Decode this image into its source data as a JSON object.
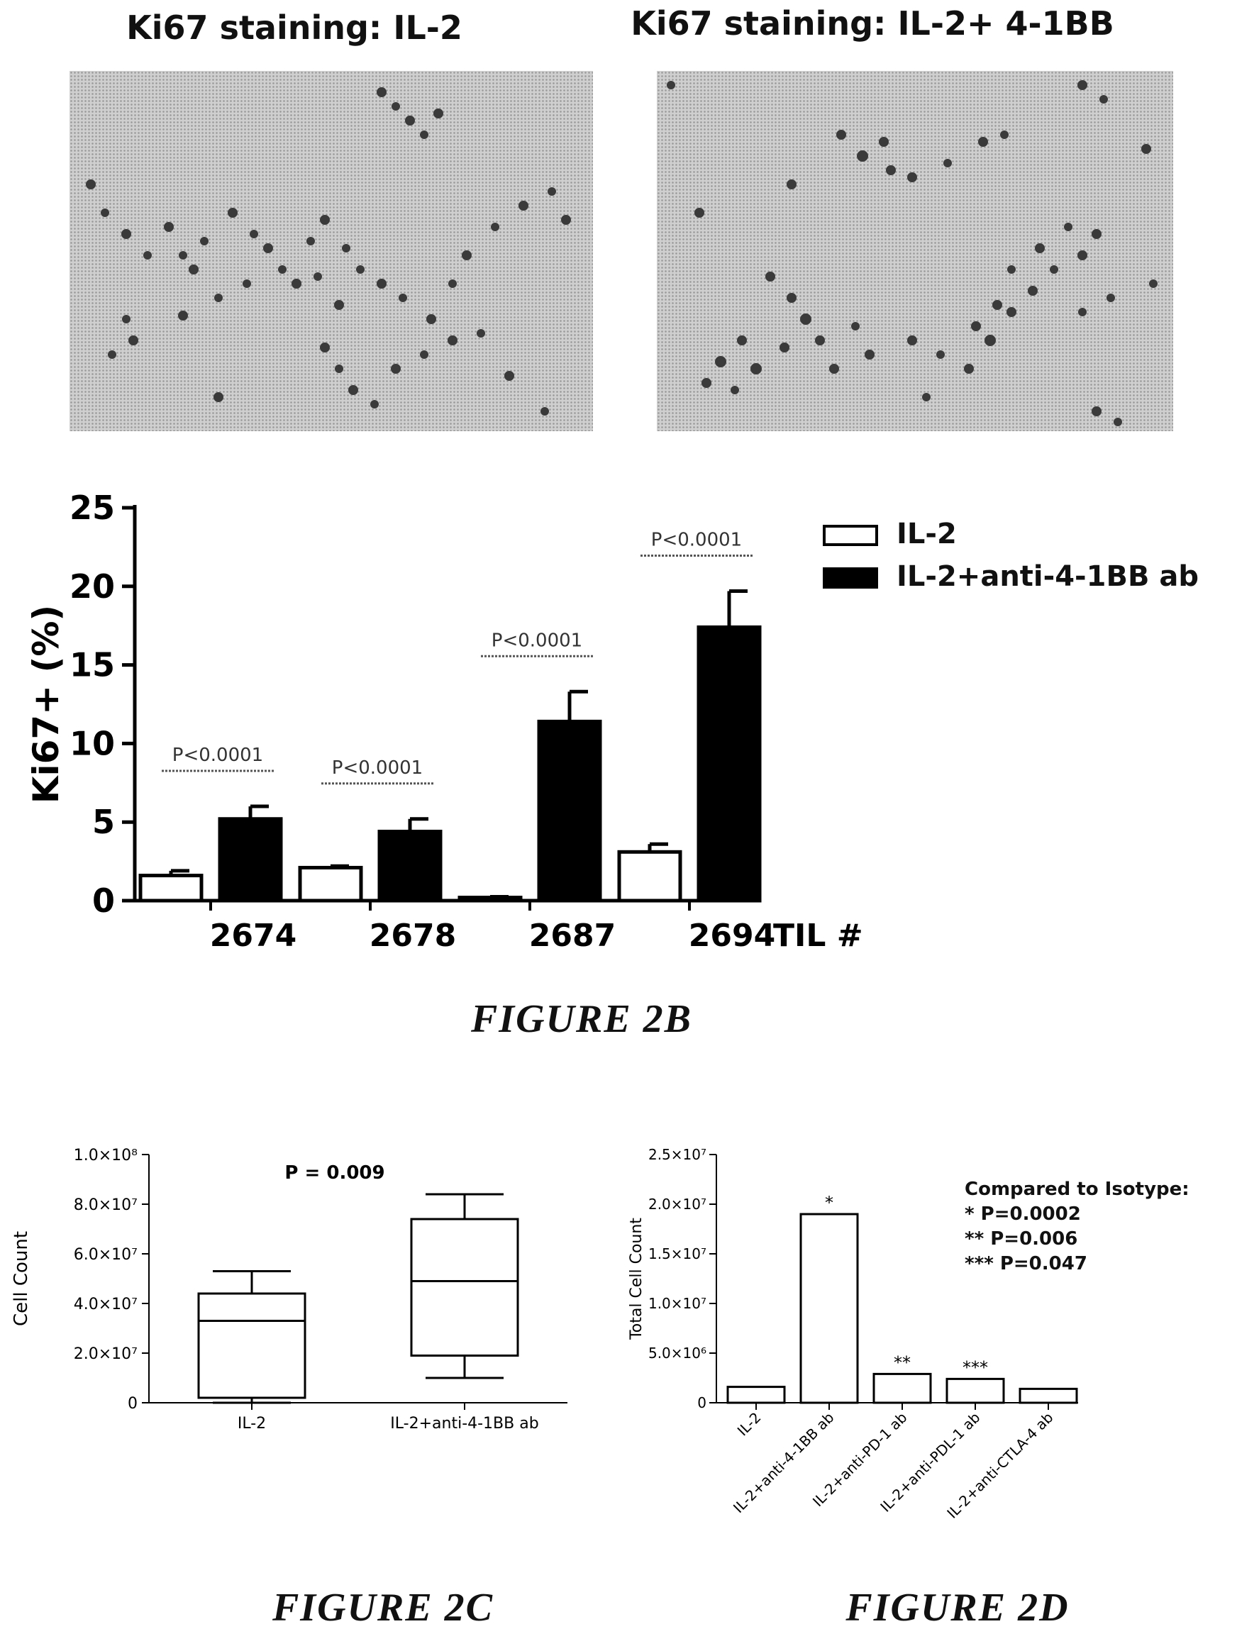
{
  "micrographs": [
    {
      "title": "Ki67 staining: IL-2"
    },
    {
      "title": "Ki67 staining: IL-2+ 4-1BB"
    }
  ],
  "captions": {
    "fig2b": "FIGURE 2B",
    "fig2c": "FIGURE 2C",
    "fig2d": "FIGURE 2D"
  },
  "colors": {
    "open_bar": "#ffffff",
    "filled_bar": "#000000",
    "axis": "#000000"
  },
  "chart_data": [
    {
      "id": "fig2b",
      "type": "bar",
      "title": "",
      "xlabel": "TIL #",
      "ylabel": "Ki67+ (%)",
      "ylim": [
        0,
        25
      ],
      "yticks": [
        0,
        5,
        10,
        15,
        20,
        25
      ],
      "categories": [
        "2674",
        "2678",
        "2687",
        "2694"
      ],
      "series": [
        {
          "name": "IL-2",
          "fill": "open",
          "values": [
            1.6,
            2.1,
            0.2,
            3.1
          ],
          "errors": [
            0.3,
            0.1,
            0.05,
            0.5
          ]
        },
        {
          "name": "IL-2+anti-4-1BB ab",
          "fill": "filled",
          "values": [
            5.2,
            4.4,
            11.4,
            17.4
          ],
          "errors": [
            0.8,
            0.8,
            1.9,
            2.3
          ]
        }
      ],
      "annotations": [
        "P<0.0001",
        "P<0.0001",
        "P<0.0001",
        "P<0.0001"
      ],
      "legend": "top-right",
      "grid": false
    },
    {
      "id": "fig2c",
      "type": "box",
      "title": "P = 0.009",
      "xlabel": "",
      "ylabel": "Cell Count",
      "ylim": [
        0,
        100000000
      ],
      "yticks": [
        0,
        20000000,
        40000000,
        60000000,
        80000000,
        100000000
      ],
      "ytick_labels": [
        "0",
        "2.0×10⁷",
        "4.0×10⁷",
        "6.0×10⁷",
        "8.0×10⁷",
        "1.0×10⁸"
      ],
      "categories": [
        "IL-2",
        "IL-2+anti-4-1BB ab"
      ],
      "boxes": [
        {
          "min": 0,
          "q1": 2000000,
          "median": 33000000,
          "q3": 44000000,
          "max": 53000000
        },
        {
          "min": 10000000,
          "q1": 19000000,
          "median": 49000000,
          "q3": 74000000,
          "max": 84000000
        }
      ],
      "grid": false
    },
    {
      "id": "fig2d",
      "type": "bar",
      "title": "",
      "xlabel": "",
      "ylabel": "Total Cell Count",
      "ylim": [
        0,
        25000000
      ],
      "yticks": [
        0,
        5000000,
        10000000,
        15000000,
        20000000,
        25000000
      ],
      "ytick_labels": [
        "0",
        "5.0×10⁶",
        "1.0×10⁷",
        "1.5×10⁷",
        "2.0×10⁷",
        "2.5×10⁷"
      ],
      "categories": [
        "IL-2",
        "IL-2+anti-4-1BB ab",
        "IL-2+anti-PD-1 ab",
        "IL-2+anti-PDL-1 ab",
        "IL-2+anti-CTLA-4 ab"
      ],
      "values": [
        1600000,
        19000000,
        2900000,
        2400000,
        1400000
      ],
      "bar_labels": [
        "",
        "*",
        "**",
        "***",
        ""
      ],
      "legend_note": [
        "Compared to Isotype:",
        "*  P=0.0002",
        "**  P=0.006",
        "*** P=0.047"
      ],
      "grid": false
    }
  ]
}
